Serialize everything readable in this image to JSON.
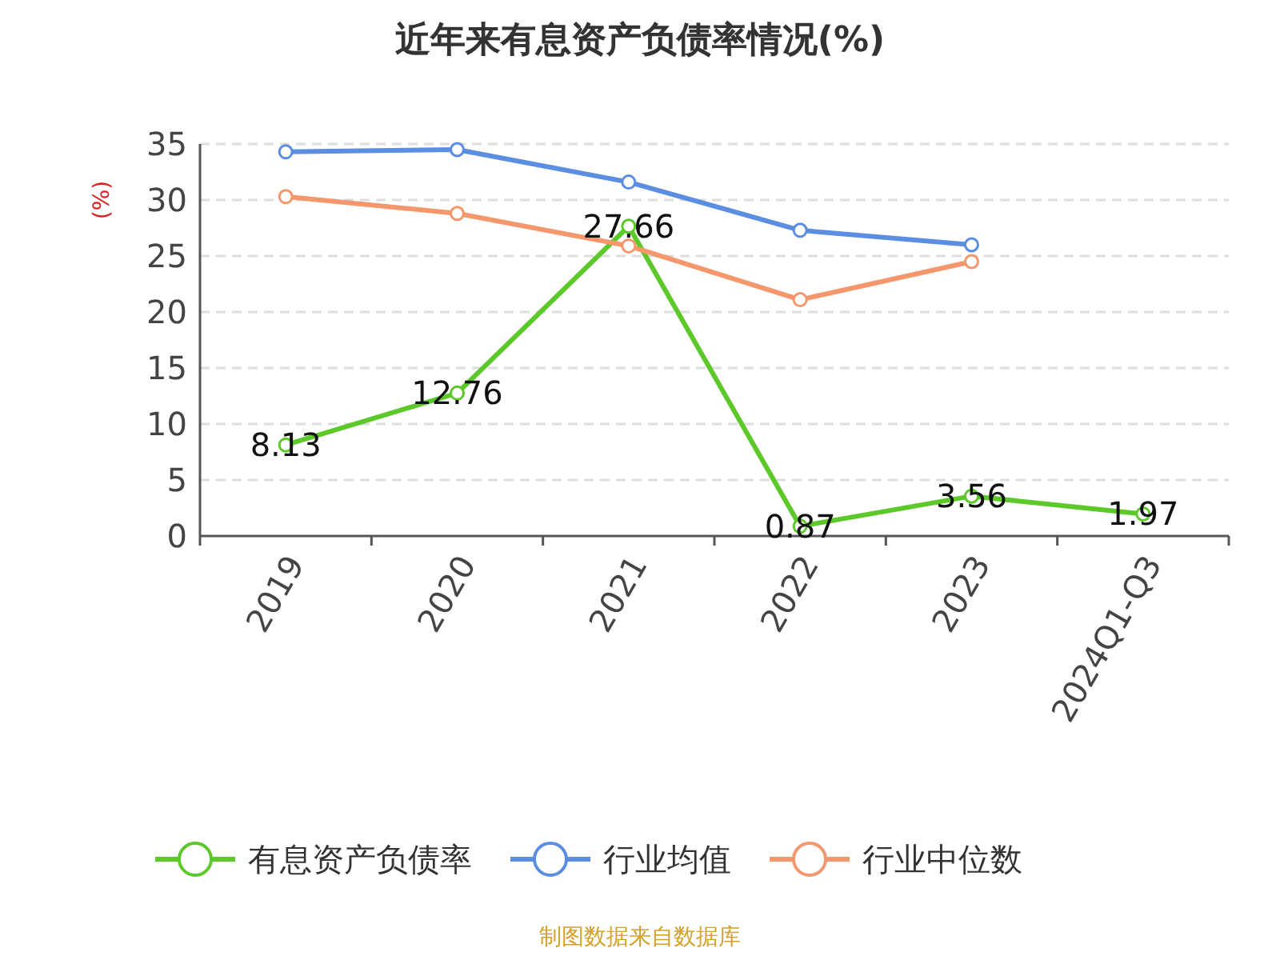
{
  "chart_data": {
    "type": "line",
    "title": "近年来有息资产负债率情况(%)",
    "ylabel": "(%)",
    "categories": [
      "2019",
      "2020",
      "2021",
      "2022",
      "2023",
      "2024Q1-Q3"
    ],
    "series": [
      {
        "name": "有息资产负债率",
        "color": "#5cc82a",
        "values": [
          8.13,
          12.76,
          27.66,
          0.87,
          3.56,
          1.97
        ],
        "data_labels": true
      },
      {
        "name": "行业均值",
        "color": "#5b8ee0",
        "values": [
          34.3,
          34.5,
          31.6,
          27.3,
          26.0,
          null
        ]
      },
      {
        "name": "行业中位数",
        "color": "#f4976c",
        "values": [
          30.3,
          28.8,
          25.9,
          21.1,
          24.5,
          null
        ]
      }
    ],
    "ylim": [
      0,
      35
    ],
    "yticks": [
      0,
      5,
      10,
      15,
      20,
      25,
      30,
      35
    ],
    "grid": "y",
    "legend": "bottom",
    "marker": "circle",
    "annotations": [
      "制图数据来自数据库"
    ]
  }
}
